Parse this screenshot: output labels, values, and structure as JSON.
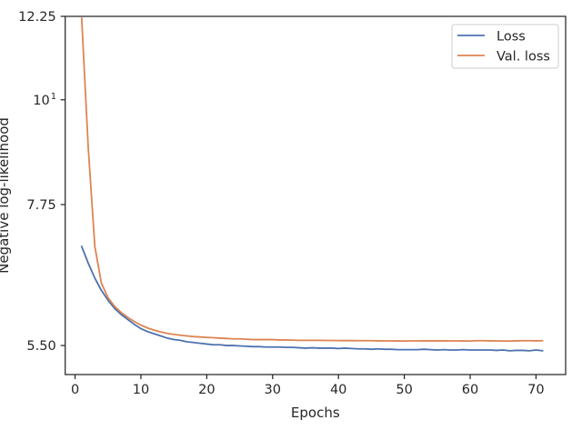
{
  "chart_data": {
    "type": "line",
    "xlabel": "Epochs",
    "ylabel": "Negative log-likelihood",
    "xlim": [
      -1.5,
      74.5
    ],
    "ylim": [
      5.125,
      12.25
    ],
    "yscale": "log",
    "xticks": [
      0,
      10,
      20,
      30,
      40,
      50,
      60,
      70
    ],
    "yticks": [
      5.5,
      7.75,
      10,
      12.25
    ],
    "ytick_labels": [
      "5.50",
      "7.75",
      "10",
      "12.25"
    ],
    "ytick_exp": [
      "",
      "",
      "1",
      ""
    ],
    "grid": false,
    "legend_position": "upper right",
    "series": [
      {
        "name": "Loss",
        "color": "#4c72b0",
        "x": [
          1,
          2,
          3,
          4,
          5,
          6,
          7,
          8,
          9,
          10,
          11,
          12,
          13,
          14,
          15,
          16,
          17,
          18,
          19,
          20,
          21,
          22,
          23,
          24,
          25,
          26,
          27,
          28,
          29,
          30,
          31,
          32,
          33,
          34,
          35,
          36,
          37,
          38,
          39,
          40,
          41,
          42,
          43,
          44,
          45,
          46,
          47,
          48,
          49,
          50,
          51,
          52,
          53,
          54,
          55,
          56,
          57,
          58,
          59,
          60,
          61,
          62,
          63,
          64,
          65,
          66,
          67,
          68,
          69,
          70,
          71
        ],
        "values": [
          7.0,
          6.72,
          6.48,
          6.29,
          6.14,
          6.02,
          5.93,
          5.86,
          5.79,
          5.73,
          5.69,
          5.66,
          5.63,
          5.6,
          5.58,
          5.57,
          5.55,
          5.54,
          5.53,
          5.52,
          5.51,
          5.51,
          5.5,
          5.5,
          5.495,
          5.49,
          5.485,
          5.485,
          5.48,
          5.48,
          5.48,
          5.475,
          5.475,
          5.47,
          5.465,
          5.47,
          5.465,
          5.465,
          5.465,
          5.46,
          5.465,
          5.46,
          5.455,
          5.455,
          5.45,
          5.455,
          5.45,
          5.45,
          5.445,
          5.445,
          5.445,
          5.445,
          5.45,
          5.445,
          5.44,
          5.445,
          5.44,
          5.44,
          5.445,
          5.44,
          5.44,
          5.44,
          5.44,
          5.435,
          5.44,
          5.43,
          5.435,
          5.435,
          5.43,
          5.44,
          5.43
        ]
      },
      {
        "name": "Val. loss",
        "color": "#dd8452",
        "x": [
          1,
          2,
          3,
          4,
          5,
          6,
          7,
          8,
          9,
          10,
          11,
          12,
          13,
          14,
          15,
          16,
          17,
          18,
          19,
          20,
          21,
          22,
          23,
          24,
          25,
          26,
          27,
          28,
          29,
          30,
          31,
          32,
          33,
          34,
          35,
          36,
          37,
          38,
          39,
          40,
          41,
          42,
          43,
          44,
          45,
          46,
          47,
          48,
          49,
          50,
          51,
          52,
          53,
          54,
          55,
          56,
          57,
          58,
          59,
          60,
          61,
          62,
          63,
          64,
          65,
          66,
          67,
          68,
          69,
          70,
          71
        ],
        "values": [
          12.2,
          8.9,
          7.0,
          6.4,
          6.18,
          6.05,
          5.96,
          5.89,
          5.83,
          5.78,
          5.74,
          5.71,
          5.685,
          5.665,
          5.65,
          5.64,
          5.63,
          5.62,
          5.615,
          5.61,
          5.605,
          5.6,
          5.595,
          5.59,
          5.59,
          5.585,
          5.58,
          5.58,
          5.58,
          5.58,
          5.575,
          5.575,
          5.573,
          5.57,
          5.57,
          5.57,
          5.57,
          5.568,
          5.568,
          5.567,
          5.566,
          5.566,
          5.565,
          5.565,
          5.565,
          5.563,
          5.562,
          5.562,
          5.561,
          5.56,
          5.562,
          5.562,
          5.563,
          5.563,
          5.563,
          5.563,
          5.562,
          5.562,
          5.561,
          5.56,
          5.565,
          5.565,
          5.563,
          5.562,
          5.56,
          5.56,
          5.563,
          5.565,
          5.565,
          5.563,
          5.565
        ]
      }
    ]
  }
}
